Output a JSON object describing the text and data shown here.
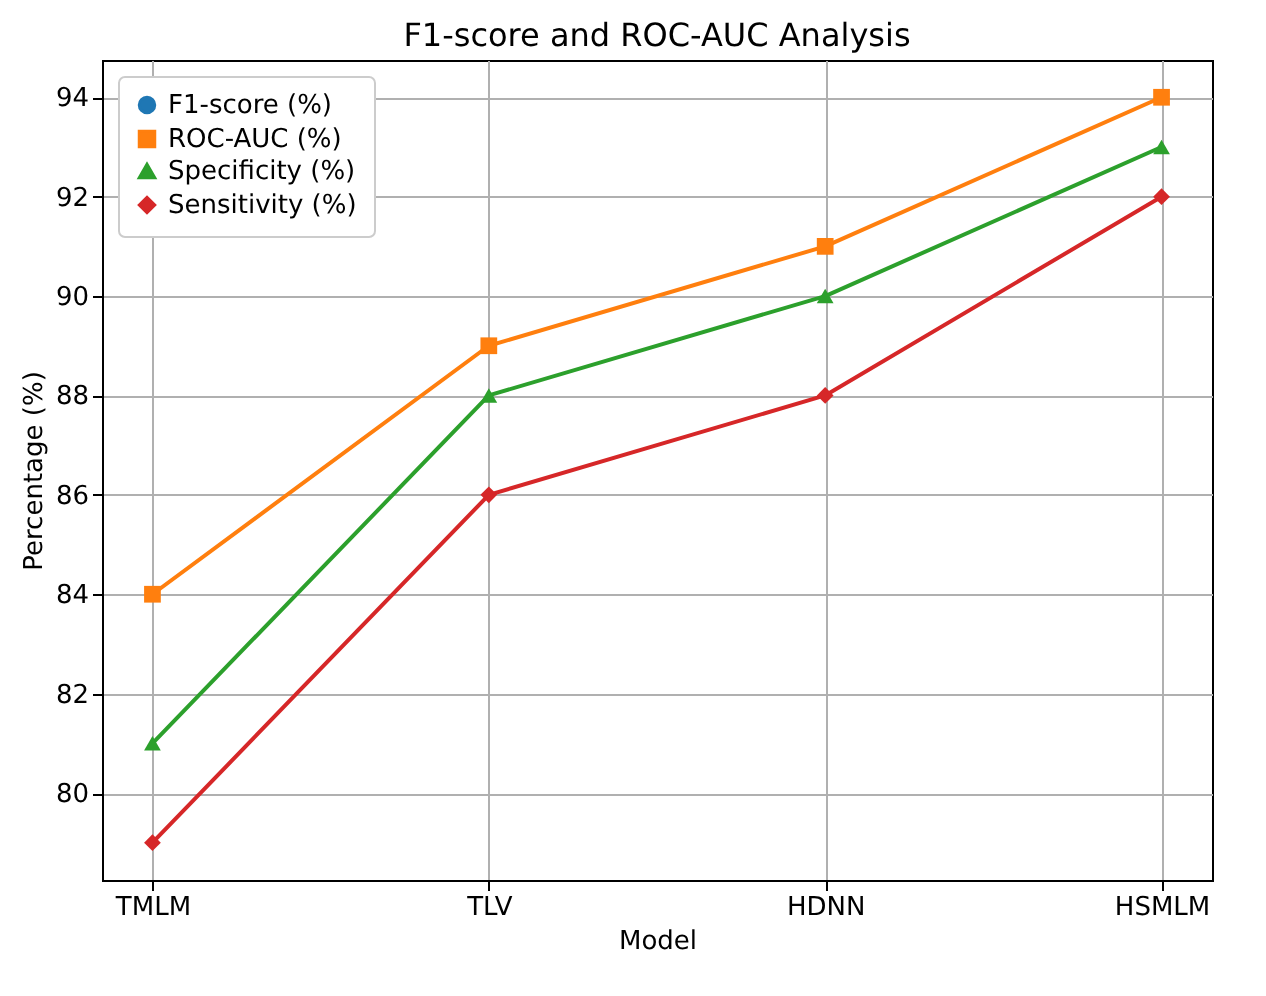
{
  "chart_data": {
    "type": "line",
    "title": "F1-score and ROC-AUC Analysis",
    "xlabel": "Model",
    "ylabel": "Percentage (%)",
    "categories": [
      "TMLM",
      "TLV",
      "HDNN",
      "HSMLM"
    ],
    "series": [
      {
        "name": "F1-score (%)",
        "color": "#1f77b4",
        "marker": "circle",
        "values": [
          null,
          null,
          null,
          null
        ]
      },
      {
        "name": "ROC-AUC (%)",
        "color": "#ff7f0e",
        "marker": "square",
        "values": [
          84,
          89,
          91,
          94
        ]
      },
      {
        "name": "Specificity (%)",
        "color": "#2ca02c",
        "marker": "triangle",
        "values": [
          81,
          88,
          90,
          93
        ]
      },
      {
        "name": "Sensitivity (%)",
        "color": "#d62728",
        "marker": "diamond",
        "values": [
          79,
          86,
          88,
          92
        ]
      }
    ],
    "ylim": [
      78.25,
      94.75
    ],
    "yticks": [
      80,
      82,
      84,
      86,
      88,
      90,
      92,
      94
    ],
    "grid": true,
    "legend": "top left",
    "line_style": "solid"
  }
}
